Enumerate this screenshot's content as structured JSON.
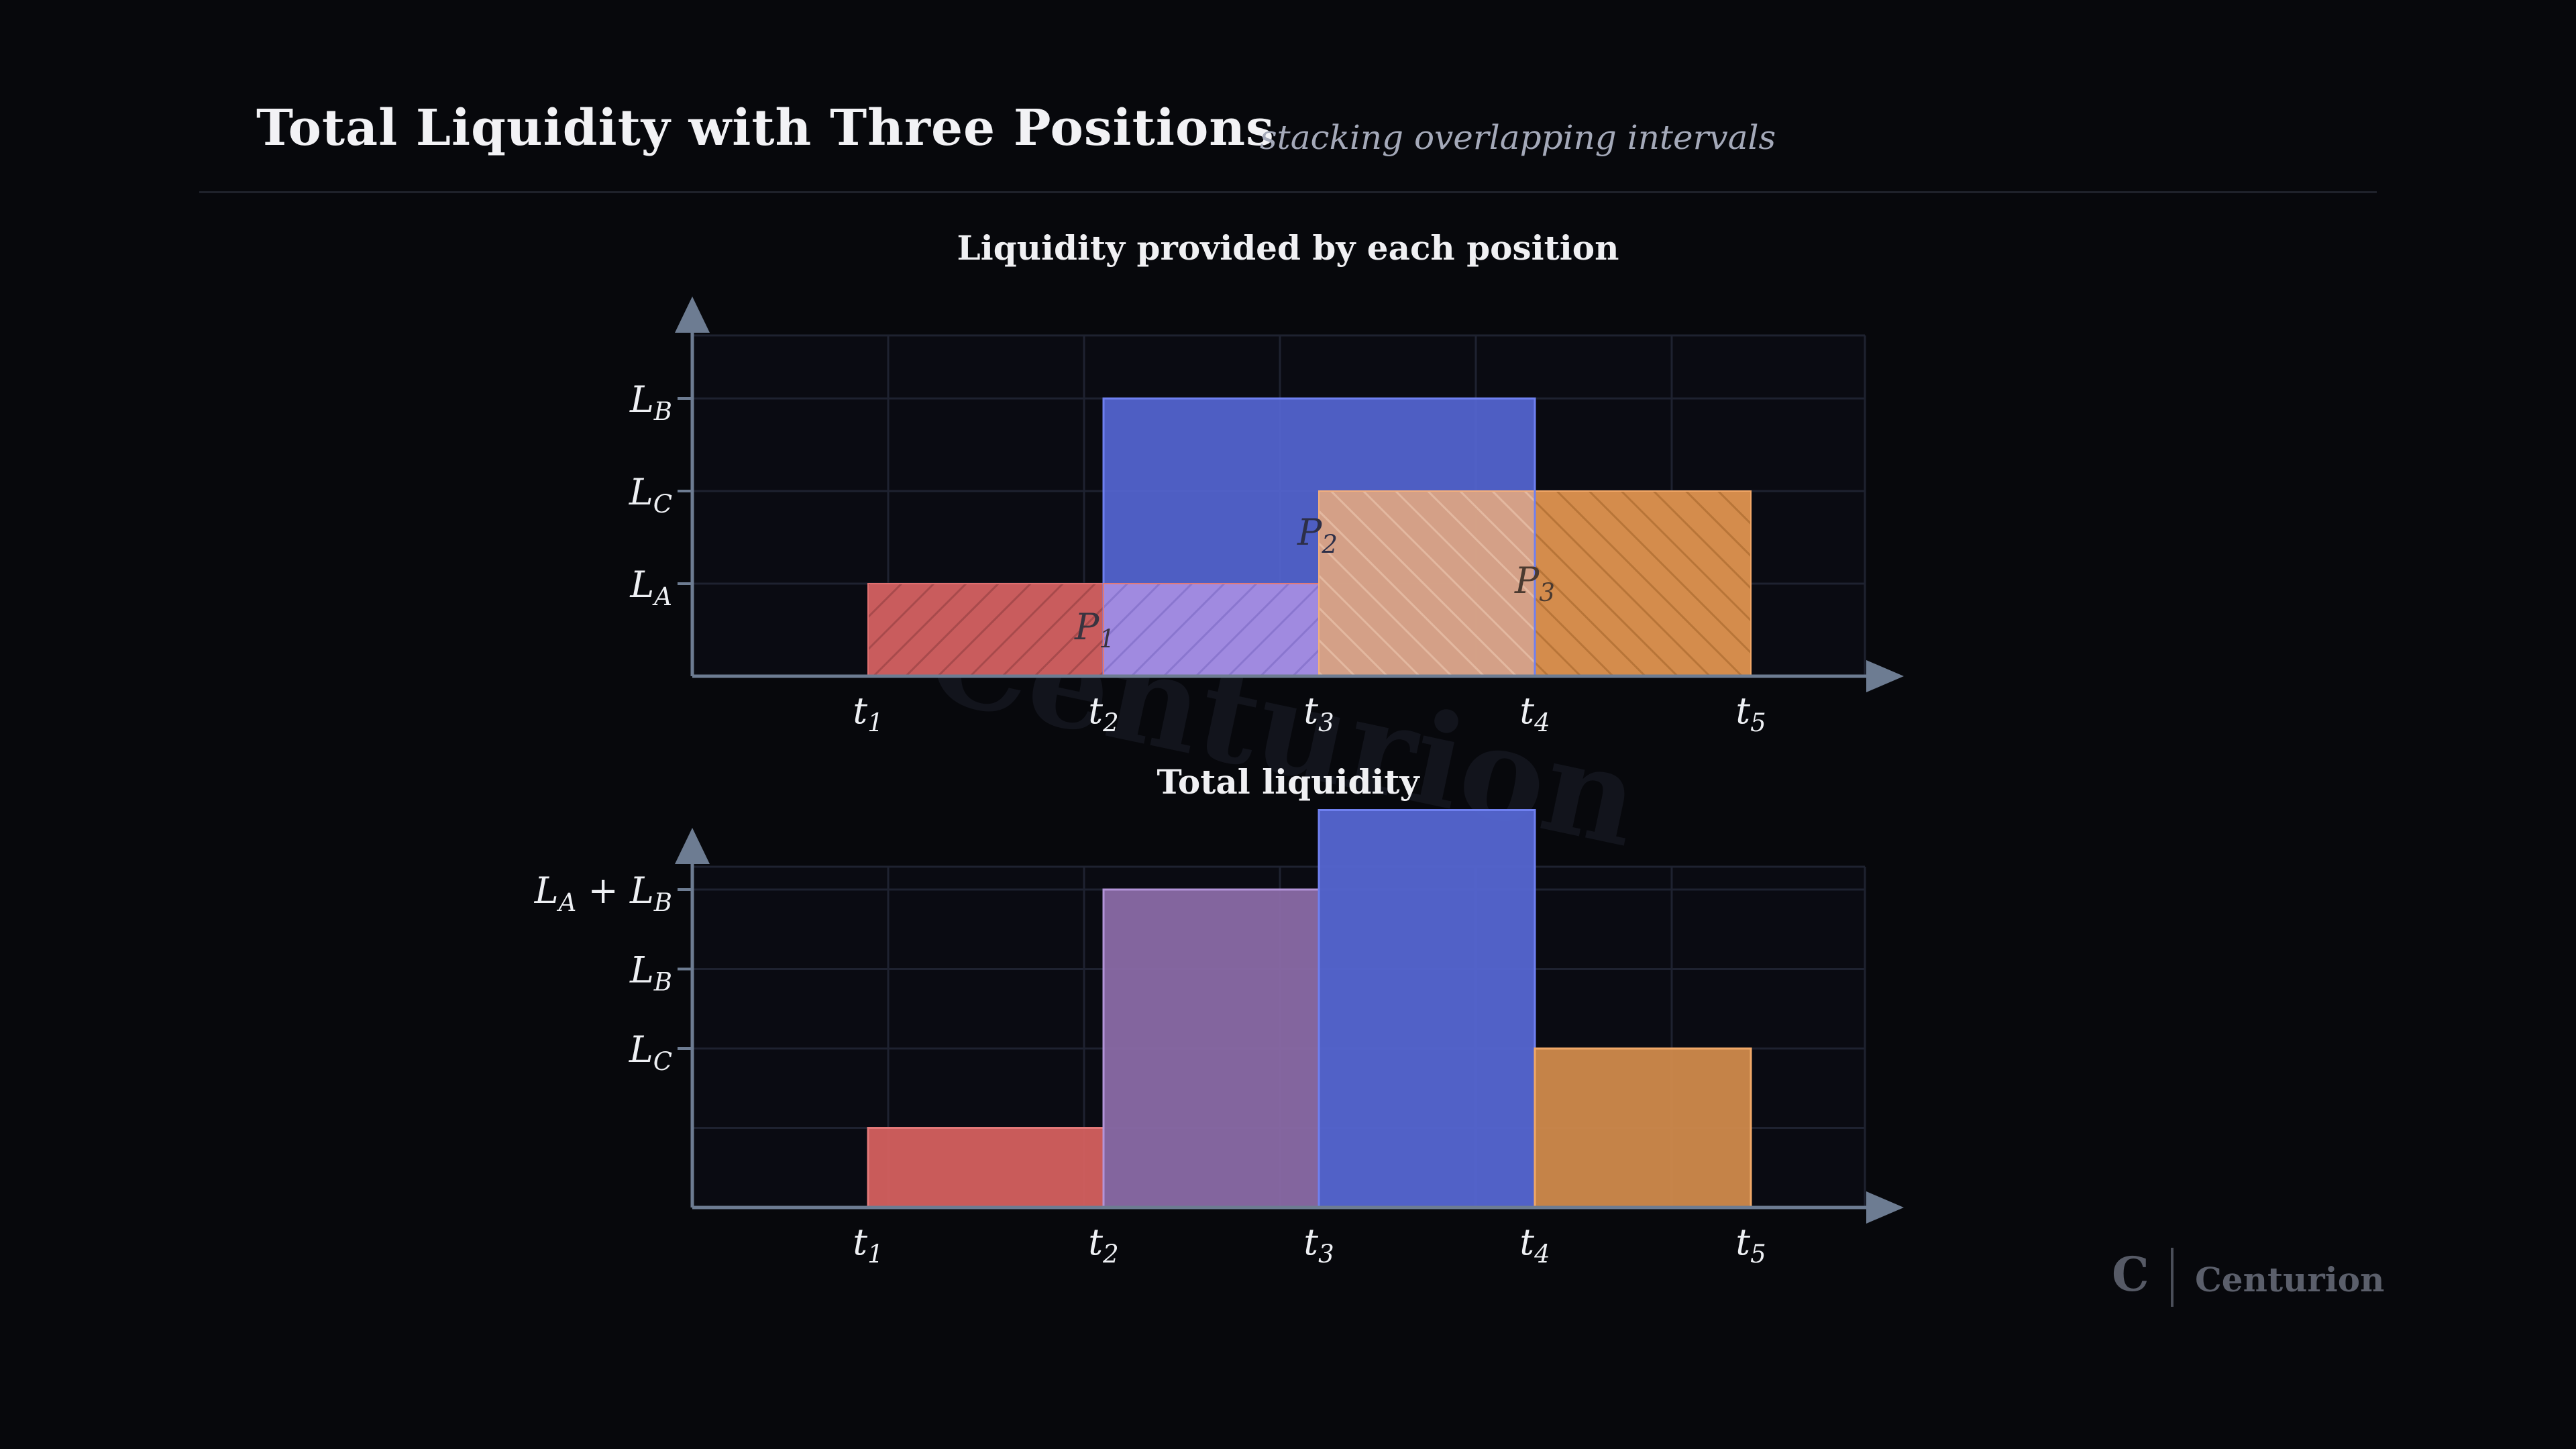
{
  "header": {
    "title": "Total Liquidity with Three Positions",
    "subtitle": "stacking overlapping intervals"
  },
  "watermark": "Centurion",
  "logo": {
    "mark": "C",
    "name": "Centurion"
  },
  "colors": {
    "background": "#07080c",
    "axis": "#6d7c92",
    "grid": "#1e2230",
    "position_a": "#d4605f",
    "position_b": "#5566d2",
    "position_c": "#f1a468",
    "overlap_ab": "#8a6aa6",
    "overlap_bc": "#d49470",
    "total_c": "#d08a4c"
  },
  "chart_data": [
    {
      "type": "bar",
      "title": "Liquidity provided by each position",
      "x_ticks": [
        "t_1",
        "t_2",
        "t_3",
        "t_4",
        "t_5"
      ],
      "y_ticks": [
        "L_A",
        "L_C",
        "L_B"
      ],
      "levels": {
        "L_A": 1,
        "L_C": 2,
        "L_B": 3
      },
      "ylim": [
        0,
        3.7
      ],
      "grid": true,
      "series": [
        {
          "name": "P_1",
          "start": "t_1",
          "end": "t_3",
          "value": 1,
          "hatched": true
        },
        {
          "name": "P_2",
          "start": "t_2",
          "end": "t_4",
          "value": 3,
          "hatched": false
        },
        {
          "name": "P_3",
          "start": "t_3",
          "end": "t_5",
          "value": 2,
          "hatched": true
        }
      ]
    },
    {
      "type": "bar",
      "title": "Total liquidity",
      "x_ticks": [
        "t_1",
        "t_2",
        "t_3",
        "t_4",
        "t_5"
      ],
      "y_ticks": [
        "L_C",
        "L_B",
        "L_A + L_B"
      ],
      "levels": {
        "L_C": 2,
        "L_B": 3,
        "L_A + L_B": 4
      },
      "ylim": [
        0,
        4.3
      ],
      "grid": true,
      "segments": [
        {
          "start": "t_1",
          "end": "t_2",
          "value": 1
        },
        {
          "start": "t_2",
          "end": "t_3",
          "value": 4
        },
        {
          "start": "t_3",
          "end": "t_4",
          "value": 5
        },
        {
          "start": "t_4",
          "end": "t_5",
          "value": 2
        }
      ]
    }
  ]
}
